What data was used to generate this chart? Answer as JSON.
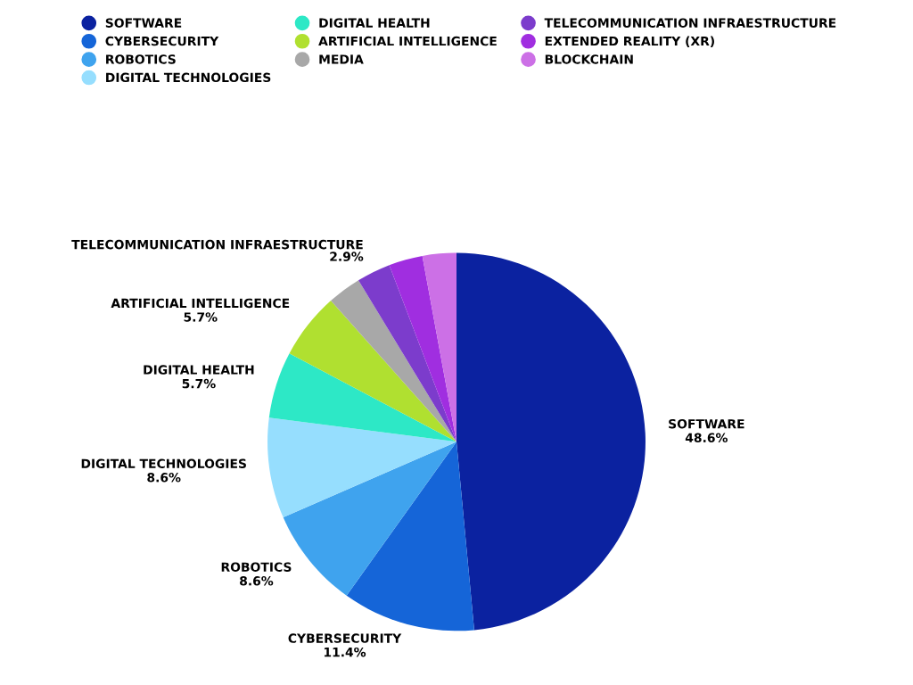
{
  "chart_data": {
    "type": "pie",
    "categories": [
      "SOFTWARE",
      "CYBERSECURITY",
      "ROBOTICS",
      "DIGITAL TECHNOLOGIES",
      "DIGITAL HEALTH",
      "ARTIFICIAL INTELLIGENCE",
      "MEDIA",
      "TELECOMMUNICATION INFRAESTRUCTURE",
      "EXTENDED REALITY (XR)",
      "BLOCKCHAIN"
    ],
    "values": [
      48.6,
      11.4,
      8.6,
      8.6,
      5.7,
      5.7,
      2.9,
      2.9,
      2.9,
      2.9
    ],
    "colors": [
      "#0b22a0",
      "#1565d8",
      "#3fa3ee",
      "#96defe",
      "#2de8c6",
      "#b0e030",
      "#a8a8a8",
      "#7c3ccc",
      "#a02ee0",
      "#cc70e6"
    ],
    "value_labels": [
      "48.6%",
      "11.4%",
      "8.6%",
      "8.6%",
      "5.7%",
      "5.7%",
      null,
      "2.9%",
      null,
      null
    ],
    "legend": "top"
  }
}
